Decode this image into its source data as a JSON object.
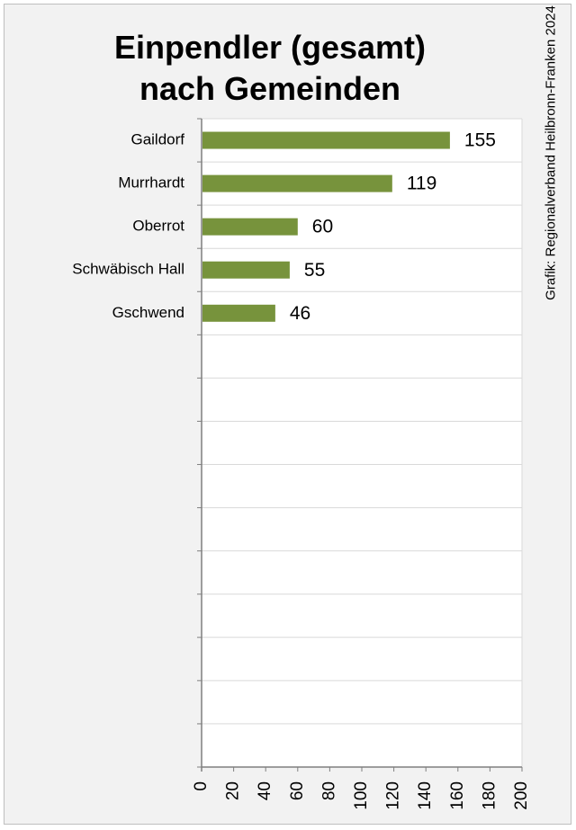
{
  "chart_data": {
    "type": "bar",
    "orientation": "horizontal",
    "title_line1": "Einpendler (gesamt)",
    "title_line2": "nach Gemeinden",
    "source": "Grafik: Regionalverband Heilbronn-Franken 2024",
    "categories": [
      "Gaildorf",
      "Murrhardt",
      "Oberrot",
      "Schwäbisch Hall",
      "Gschwend"
    ],
    "values": [
      155,
      119,
      60,
      55,
      46
    ],
    "total_rows": 15,
    "xlim": [
      0,
      200
    ],
    "xticks": [
      "0",
      "20",
      "40",
      "60",
      "80",
      "100",
      "120",
      "140",
      "160",
      "180",
      "200"
    ],
    "grid": true,
    "bar_color": "#77933c",
    "background_color": "#f2f2f2",
    "plot_background": "#ffffff",
    "grid_color": "#d9d9d9"
  }
}
